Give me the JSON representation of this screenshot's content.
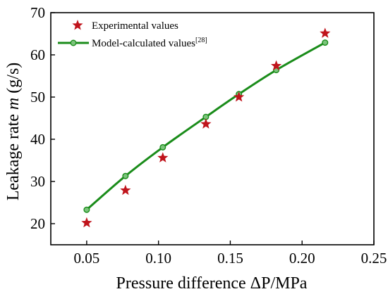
{
  "chart_data": {
    "type": "scatter",
    "title": "",
    "xlabel": "Pressure difference ΔP/MPa",
    "ylabel_prefix": "Leakage rate ",
    "ylabel_var": "m",
    "ylabel_suffix": " (g/s)",
    "xlim": [
      0.025,
      0.25
    ],
    "ylim": [
      15,
      70
    ],
    "xticks": [
      0.05,
      0.1,
      0.15,
      0.2,
      0.25
    ],
    "xtick_labels": [
      "0.05",
      "0.10",
      "0.15",
      "0.20",
      "0.25"
    ],
    "yticks": [
      20,
      30,
      40,
      50,
      60,
      70
    ],
    "ytick_labels": [
      "20",
      "30",
      "40",
      "50",
      "60",
      "70"
    ],
    "grid": false,
    "legend_position": "top-left",
    "series": [
      {
        "name": "Experimental values",
        "marker": "star",
        "color": "#c0141c",
        "x": [
          0.05,
          0.077,
          0.103,
          0.133,
          0.156,
          0.182,
          0.216
        ],
        "y": [
          20.2,
          27.9,
          35.6,
          43.6,
          50.0,
          57.4,
          65.1
        ]
      },
      {
        "name": "Model-calculated values",
        "name_superscript": "[28]",
        "marker": "circle-line",
        "color": "#1a8c1a",
        "x": [
          0.05,
          0.077,
          0.103,
          0.133,
          0.156,
          0.182,
          0.216
        ],
        "y": [
          23.3,
          31.3,
          38.1,
          45.3,
          50.7,
          56.4,
          62.9
        ]
      }
    ]
  }
}
